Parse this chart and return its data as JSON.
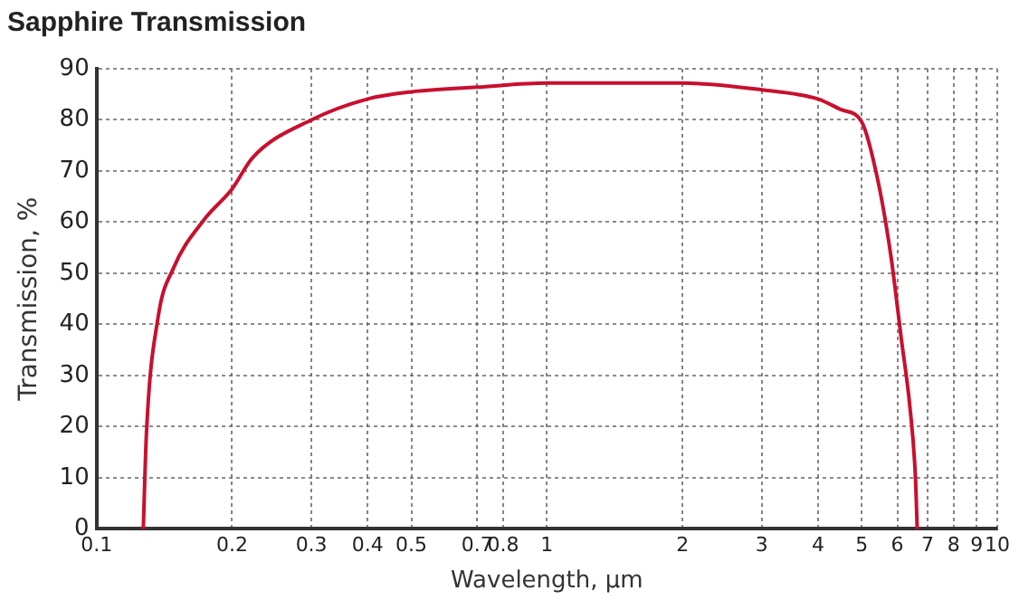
{
  "chart_data": {
    "type": "line",
    "title": "Sapphire Transmission",
    "xlabel": "Wavelength, μm",
    "ylabel": "Transmission, %",
    "log": "x",
    "grid": true,
    "legend": false,
    "marker": "none",
    "line_style": "solid",
    "xlim": [
      0.1,
      10
    ],
    "xticks": [
      0.1,
      0.2,
      0.3,
      0.4,
      0.5,
      0.7,
      0.8,
      1,
      2,
      3,
      4,
      5,
      6,
      7,
      8,
      9,
      10
    ],
    "ylim": [
      0,
      90
    ],
    "yticks": [
      0,
      10,
      20,
      30,
      40,
      50,
      60,
      70,
      80,
      90
    ],
    "x": [
      0.127,
      0.129,
      0.137,
      0.148,
      0.173,
      0.2,
      0.222,
      0.3,
      0.4,
      0.5,
      0.7,
      1,
      2,
      3,
      4,
      4.5,
      5,
      5.42,
      5.8,
      6.12,
      6.4,
      6.58,
      6.64
    ],
    "series": [
      {
        "color": "#c8102e",
        "values": [
          0,
          18.3,
          41.4,
          50.9,
          60.4,
          66.5,
          72.6,
          80,
          84.1,
          85.5,
          86.4,
          87.2,
          87.2,
          85.9,
          84.1,
          82,
          79.6,
          68.5,
          53.6,
          37.3,
          23.7,
          10.2,
          0
        ]
      }
    ]
  }
}
